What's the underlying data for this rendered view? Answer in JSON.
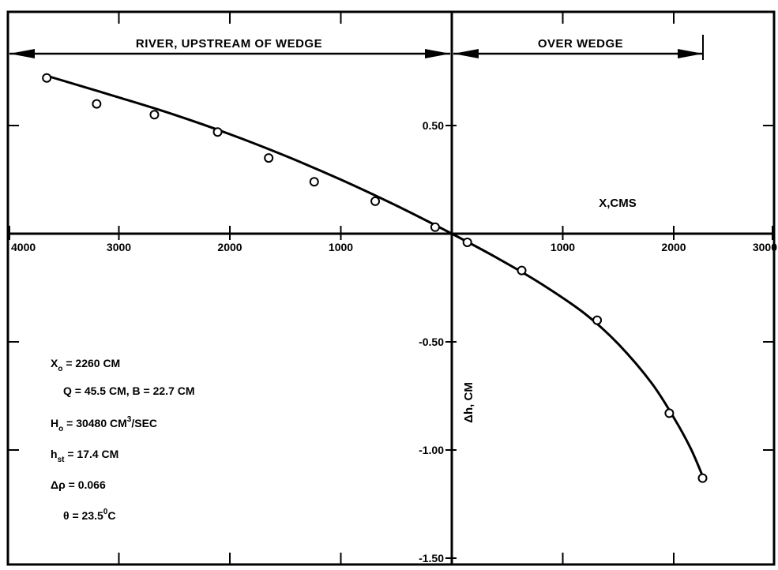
{
  "chart_data": {
    "type": "scatter",
    "xlabel": "X,CMS",
    "ylabel": "Δh, CM",
    "xlim": [
      -4000,
      3000
    ],
    "ylim": [
      -1.5,
      0.75
    ],
    "grid": false,
    "regions": [
      {
        "label": "RIVER, UPSTREAM OF WEDGE",
        "x_range": [
          -4000,
          0
        ]
      },
      {
        "label": "OVER WEDGE",
        "x_range": [
          0,
          2260
        ]
      }
    ],
    "x_tick_labels": [
      {
        "value": -4000,
        "label": "4000"
      },
      {
        "value": -3000,
        "label": "3000"
      },
      {
        "value": -2000,
        "label": "2000"
      },
      {
        "value": -1000,
        "label": "1000"
      },
      {
        "value": 1000,
        "label": "1000"
      },
      {
        "value": 2000,
        "label": "2000"
      },
      {
        "value": 3000,
        "label": "3000"
      }
    ],
    "y_tick_labels": [
      {
        "value": 0.5,
        "label": "0.50"
      },
      {
        "value": -0.5,
        "label": "-0.50"
      },
      {
        "value": -1.0,
        "label": "-1.00"
      },
      {
        "value": -1.5,
        "label": "-1.50"
      }
    ],
    "series": [
      {
        "x": [
          -3650,
          -3200,
          -2680,
          -2110,
          -1650,
          -1240,
          -690,
          -150,
          140,
          630,
          1310,
          1960,
          2260
        ],
        "y": [
          0.72,
          0.6,
          0.55,
          0.47,
          0.35,
          0.24,
          0.15,
          0.03,
          -0.04,
          -0.17,
          -0.4,
          -0.83,
          -1.13
        ]
      }
    ],
    "fit_curve": {
      "x": [
        -3650,
        -3000,
        -2500,
        -2000,
        -1500,
        -1000,
        -500,
        0,
        400,
        800,
        1200,
        1500,
        1800,
        2000,
        2150,
        2260
      ],
      "y": [
        0.73,
        0.63,
        0.55,
        0.46,
        0.36,
        0.25,
        0.13,
        0.0,
        -0.11,
        -0.23,
        -0.37,
        -0.51,
        -0.69,
        -0.85,
        -0.99,
        -1.12
      ]
    },
    "annotations": [
      {
        "name": "X",
        "sub": "o",
        "text": " = 2260 CM",
        "sup": ""
      },
      {
        "name": "Q",
        "sub": "",
        "text": " = 45.5 CM, B = 22.7 CM",
        "sup": ""
      },
      {
        "name": "H",
        "sub": "o",
        "text": " = 30480 CM",
        "sup": "3",
        "after": "/SEC"
      },
      {
        "name": "h",
        "sub": "st",
        "text": " = 17.4 CM",
        "sup": ""
      },
      {
        "name": "Δρ",
        "sub": "",
        "text": " = 0.066",
        "sup": ""
      },
      {
        "name": "θ",
        "sub": "",
        "text": " = 23.5",
        "sup": "0",
        "after": "C"
      }
    ]
  }
}
